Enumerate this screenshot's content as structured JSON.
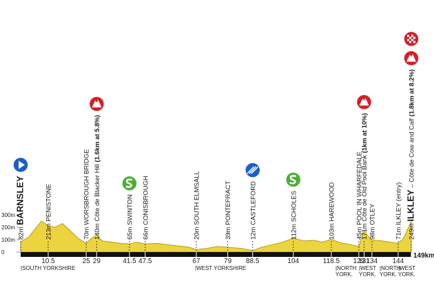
{
  "chart_data": {
    "type": "area",
    "color": "#ecd43e",
    "edge_color": "#b59c1c",
    "x": [
      0,
      3,
      6,
      8,
      10.5,
      13,
      16,
      19,
      22,
      25,
      27,
      29,
      31,
      35,
      38,
      41.5,
      44,
      47.5,
      52,
      56,
      60,
      64,
      67,
      71,
      75,
      79,
      84,
      88.5,
      92,
      96,
      100,
      104,
      108,
      112,
      115,
      118.5,
      122,
      126,
      129,
      131,
      132.5,
      134,
      138,
      141,
      144,
      146,
      147.5,
      149
    ],
    "values": [
      82,
      120,
      200,
      250,
      213,
      200,
      230,
      170,
      110,
      70,
      110,
      140,
      90,
      80,
      70,
      65,
      80,
      66,
      70,
      60,
      50,
      40,
      20,
      30,
      45,
      39,
      30,
      12,
      40,
      60,
      80,
      112,
      90,
      95,
      80,
      103,
      75,
      60,
      45,
      171,
      130,
      98,
      90,
      80,
      71,
      110,
      180,
      249
    ],
    "xlim": [
      0,
      149
    ],
    "ylim": [
      0,
      300
    ],
    "yticks": [
      {
        "value": 0,
        "label": "0"
      },
      {
        "value": 100,
        "label": "100m"
      },
      {
        "value": 200,
        "label": "200m"
      },
      {
        "value": 300,
        "label": "300m"
      }
    ],
    "xticks": [
      10.5,
      25,
      29,
      41.5,
      47.5,
      67,
      79,
      88.5,
      104,
      118.5,
      129,
      131,
      134,
      144,
      {
        "value": 149,
        "label": "149km"
      }
    ],
    "waypoints": [
      {
        "km": 0,
        "alt": "82m",
        "name": "BARNSLEY",
        "major": true,
        "icons": [
          "start"
        ]
      },
      {
        "km": 10.5,
        "alt": "213m",
        "name": "PENISTONE"
      },
      {
        "km": 25,
        "alt": "70m",
        "name": "WORSBROUGH BRIDGE"
      },
      {
        "km": 29,
        "alt": "140m",
        "name": "Côte de Blacker Hill",
        "climb": "(1.6km at 5.8%)",
        "icons": [
          "climb"
        ]
      },
      {
        "km": 41.5,
        "alt": "65m",
        "name": "SWINTON",
        "icons": [
          "sprint"
        ]
      },
      {
        "km": 47.5,
        "alt": "66m",
        "name": "CONISBROUGH"
      },
      {
        "km": 67,
        "alt": "20m",
        "name": "SOUTH ELMSALL"
      },
      {
        "km": 79,
        "alt": "39m",
        "name": "PONTEFRACT"
      },
      {
        "km": 88.5,
        "alt": "12m",
        "name": "CASTLEFORD",
        "icons": [
          "feed"
        ]
      },
      {
        "km": 104,
        "alt": "112m",
        "name": "SCHOLES",
        "icons": [
          "sprint"
        ]
      },
      {
        "km": 118.5,
        "alt": "103m",
        "name": "HAREWOOD"
      },
      {
        "km": 129,
        "alt": "45m",
        "name": "POOL IN WHARFEDALE"
      },
      {
        "km": 131,
        "alt": "171m",
        "name": "Côte de Old Pool Bank",
        "climb": "(1km at 10%)",
        "icons": [
          "climb"
        ]
      },
      {
        "km": 134,
        "alt": "98m",
        "name": "OTLEY"
      },
      {
        "km": 144,
        "alt": "71m",
        "name": "ILKLEY (entry)"
      },
      {
        "km": 149,
        "alt": "249m",
        "name": "ILKLEY",
        "major": true,
        "note": "– Côte de Cow and Calf",
        "climb": "(1.8km at 8.2%)",
        "icons": [
          "climb",
          "finish"
        ]
      }
    ],
    "regions": [
      [
        "|SOUTH YORKSHIRE"
      ],
      [
        "|WEST YORKSHIRE"
      ],
      [
        "|NORTH",
        "YORK."
      ],
      [
        "|WEST",
        "YORK."
      ],
      [
        "|NORTH",
        "YORK."
      ],
      [
        "|WEST",
        "YORK."
      ]
    ]
  }
}
